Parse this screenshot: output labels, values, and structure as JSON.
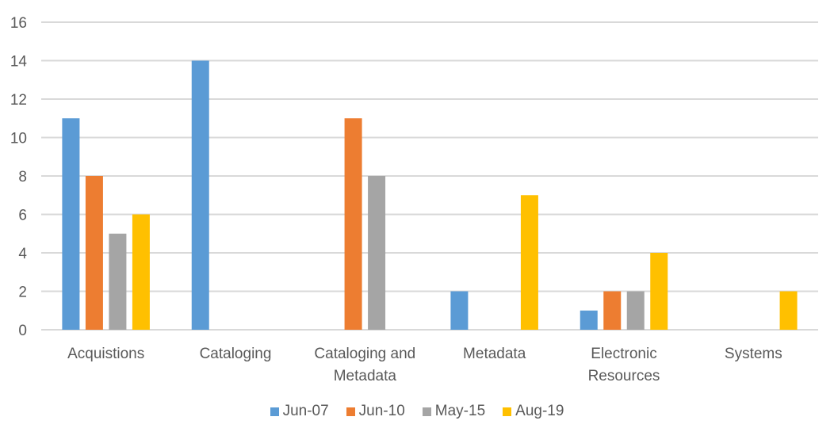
{
  "chart_data": {
    "type": "bar",
    "title": "",
    "xlabel": "",
    "ylabel": "",
    "ylim": [
      0,
      16
    ],
    "yticks": [
      0,
      2,
      4,
      6,
      8,
      10,
      12,
      14,
      16
    ],
    "grid": true,
    "legend_position": "bottom",
    "categories": [
      "Acquistions",
      "Cataloging",
      "Cataloging and Metadata",
      "Metadata",
      "Electronic Resources",
      "Systems"
    ],
    "category_lines": [
      [
        "Acquistions"
      ],
      [
        "Cataloging"
      ],
      [
        "Cataloging and",
        "Metadata"
      ],
      [
        "Metadata"
      ],
      [
        "Electronic",
        "Resources"
      ],
      [
        "Systems"
      ]
    ],
    "series": [
      {
        "name": "Jun-07",
        "color": "#5B9BD5",
        "values": [
          11,
          14,
          0,
          2,
          1,
          0
        ]
      },
      {
        "name": "Jun-10",
        "color": "#ED7D31",
        "values": [
          8,
          0,
          11,
          0,
          2,
          0
        ]
      },
      {
        "name": "May-15",
        "color": "#A5A5A5",
        "values": [
          5,
          0,
          8,
          0,
          2,
          0
        ]
      },
      {
        "name": "Aug-19",
        "color": "#FFC000",
        "values": [
          6,
          0,
          0,
          7,
          4,
          2
        ]
      }
    ]
  }
}
